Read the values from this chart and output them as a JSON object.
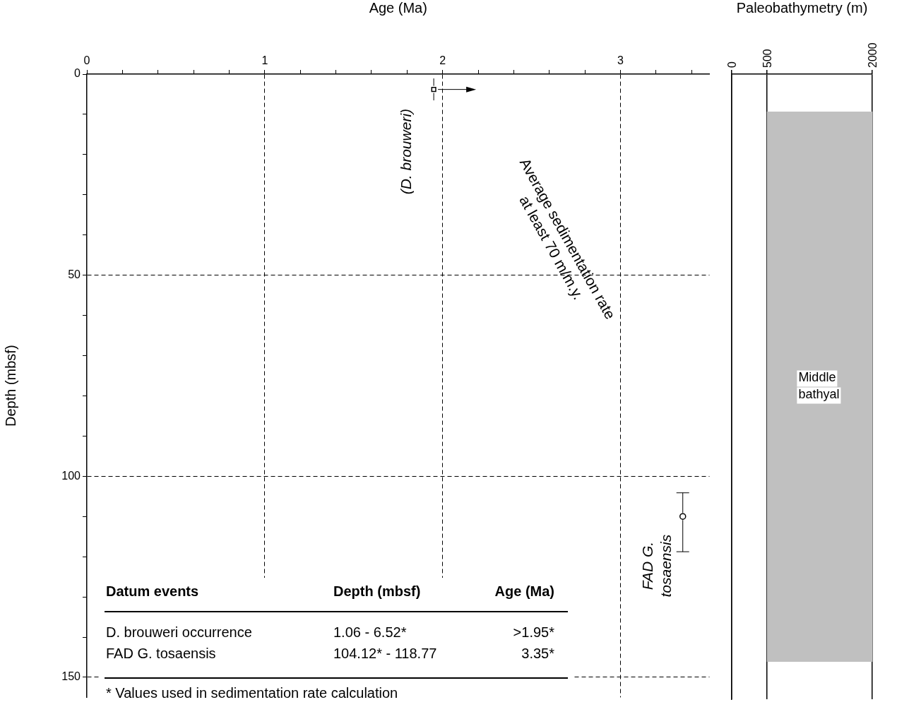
{
  "chart_data": [
    {
      "type": "scatter",
      "xlabel": "Age (Ma)",
      "ylabel": "Depth (mbsf)",
      "xlim": [
        0,
        3.5
      ],
      "ylim": [
        155,
        0
      ],
      "xticks": [
        0,
        {
          "value": 0.2,
          "label": null
        },
        {
          "value": 0.4,
          "label": null
        },
        {
          "value": 0.6,
          "label": null
        },
        {
          "value": 0.8,
          "label": null
        },
        1,
        {
          "value": 1.2,
          "label": null
        },
        {
          "value": 1.4,
          "label": null
        },
        {
          "value": 1.6,
          "label": null
        },
        {
          "value": 1.8,
          "label": null
        },
        2,
        {
          "value": 2.2,
          "label": null
        },
        {
          "value": 2.4,
          "label": null
        },
        {
          "value": 2.6,
          "label": null
        },
        {
          "value": 2.8,
          "label": null
        },
        3,
        {
          "value": 3.2,
          "label": null
        },
        {
          "value": 3.4,
          "label": null
        }
      ],
      "yticks": [
        0,
        {
          "value": 10,
          "label": null
        },
        {
          "value": 20,
          "label": null
        },
        {
          "value": 30,
          "label": null
        },
        {
          "value": 40,
          "label": null
        },
        50,
        {
          "value": 60,
          "label": null
        },
        {
          "value": 70,
          "label": null
        },
        {
          "value": 80,
          "label": null
        },
        {
          "value": 90,
          "label": null
        },
        100,
        {
          "value": 110,
          "label": null
        },
        {
          "value": 120,
          "label": null
        },
        {
          "value": 130,
          "label": null
        },
        {
          "value": 140,
          "label": null
        },
        150
      ],
      "grid": true,
      "legend": false,
      "series": [
        {
          "name": "(D. brouweri)",
          "color": "#000000",
          "marker": "square",
          "x": [
            1.95
          ],
          "values": [
            3.8
          ],
          "errors": [
            [
              1.06,
              6.52
            ]
          ]
        },
        {
          "name": "FAD G. tosaensis",
          "color": "#000000",
          "marker": "circle",
          "x": [
            3.35
          ],
          "values": [
            110
          ],
          "errors": [
            [
              104.12,
              118.77
            ]
          ]
        }
      ],
      "annotations": [
        "Average sedimentation rate at least 70 m/m.y.",
        "Datum events",
        "Depth (mbsf)",
        "Age (Ma)",
        "D. brouweri occurrence",
        "1.06 - 6.52*",
        ">1.95*",
        "FAD G. tosaensis",
        "104.12* - 118.77",
        "3.35*",
        "* Values used in sedimentation rate calculation"
      ]
    },
    {
      "type": "bar",
      "orientation": "horizontal",
      "xlabel": "Paleobathymetry (m)",
      "xlim": [
        0,
        2000
      ],
      "xticks": [
        0,
        500,
        2000
      ],
      "tick_labels": "x",
      "grid": "x",
      "categories": [
        null
      ],
      "base": [
        500
      ],
      "values": [
        1500
      ],
      "color": "#c0c0c0",
      "annotations": [
        "Middle bathyal"
      ]
    }
  ]
}
